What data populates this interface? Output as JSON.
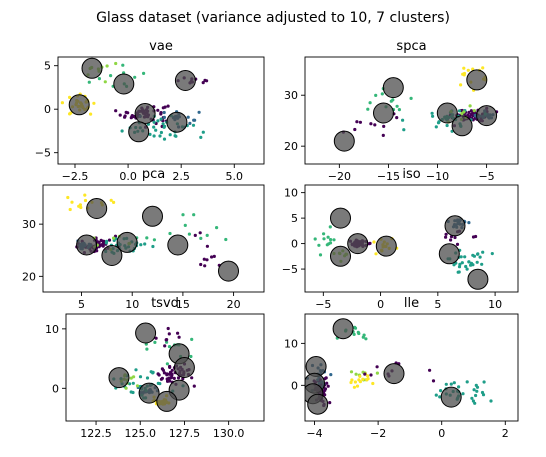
{
  "figure": {
    "suptitle": "Glass dataset (variance adjusted to 10, 7 clusters)"
  },
  "colors": {
    "class_palette": [
      "#440154",
      "#31688e",
      "#1f9e89",
      "#35b779",
      "#8fd744",
      "#d4e21a",
      "#fde725"
    ],
    "centroid_fill": "#4d4d4d",
    "centroid_edge": "#000000"
  },
  "chart_data": [
    {
      "type": "scatter",
      "title": "vae",
      "xlim": [
        -3.3,
        6.4
      ],
      "ylim": [
        -6.3,
        6.0
      ],
      "xticks": [
        -2.5,
        0.0,
        2.5,
        5.0
      ],
      "xtick_labels": [
        "−2.5",
        "0.0",
        "2.5",
        "5.0"
      ],
      "yticks": [
        -5,
        0,
        5
      ],
      "ytick_labels": [
        "−5",
        "0",
        "5"
      ],
      "centroids": [
        [
          -1.7,
          4.7
        ],
        [
          -0.2,
          2.9
        ],
        [
          2.7,
          3.3
        ],
        [
          -2.3,
          0.5
        ],
        [
          0.8,
          -0.5
        ],
        [
          2.3,
          -1.5
        ],
        [
          0.5,
          -2.6
        ]
      ],
      "clusters": [
        {
          "class": 0,
          "center": [
            0.8,
            -0.5
          ],
          "spread": [
            1.0,
            1.0
          ],
          "n": 55
        },
        {
          "class": 1,
          "center": [
            2.3,
            -1.0
          ],
          "spread": [
            0.9,
            0.9
          ],
          "n": 20
        },
        {
          "class": 2,
          "center": [
            1.4,
            -2.0
          ],
          "spread": [
            1.5,
            1.4
          ],
          "n": 35
        },
        {
          "class": 3,
          "center": [
            -0.6,
            3.5
          ],
          "spread": [
            1.4,
            1.3
          ],
          "n": 10
        },
        {
          "class": 4,
          "center": [
            -1.3,
            4.5
          ],
          "spread": [
            0.9,
            0.8
          ],
          "n": 9
        },
        {
          "class": 6,
          "center": [
            -2.3,
            0.5
          ],
          "spread": [
            0.7,
            1.0
          ],
          "n": 28
        },
        {
          "class": 0,
          "center": [
            3.0,
            3.3
          ],
          "spread": [
            0.7,
            0.4
          ],
          "n": 10
        }
      ]
    },
    {
      "type": "scatter",
      "title": "spca",
      "xlim": [
        -23.5,
        -1.8
      ],
      "ylim": [
        16.5,
        37.5
      ],
      "xticks": [
        -20,
        -15,
        -10,
        -5
      ],
      "xtick_labels": [
        "−20",
        "−15",
        "−10",
        "−5"
      ],
      "yticks": [
        20,
        30
      ],
      "ytick_labels": [
        "20",
        "30"
      ],
      "centroids": [
        [
          -19.5,
          21.0
        ],
        [
          -15.5,
          26.5
        ],
        [
          -14.5,
          31.5
        ],
        [
          -9.0,
          26.5
        ],
        [
          -7.5,
          24.0
        ],
        [
          -6.0,
          33.0
        ],
        [
          -5.0,
          26.0
        ]
      ],
      "clusters": [
        {
          "class": 0,
          "center": [
            -6.5,
            26.0
          ],
          "spread": [
            1.8,
            1.2
          ],
          "n": 55
        },
        {
          "class": 1,
          "center": [
            -5.2,
            26.0
          ],
          "spread": [
            0.8,
            0.8
          ],
          "n": 20
        },
        {
          "class": 2,
          "center": [
            -9.0,
            25.5
          ],
          "spread": [
            2.5,
            1.8
          ],
          "n": 30
        },
        {
          "class": 3,
          "center": [
            -15.0,
            28.5
          ],
          "spread": [
            3.5,
            3.5
          ],
          "n": 12
        },
        {
          "class": 4,
          "center": [
            -8.0,
            26.5
          ],
          "spread": [
            2.0,
            2.0
          ],
          "n": 8
        },
        {
          "class": 6,
          "center": [
            -6.0,
            33.5
          ],
          "spread": [
            2.0,
            2.2
          ],
          "n": 14
        },
        {
          "class": 0,
          "center": [
            -17.0,
            24.0
          ],
          "spread": [
            3.0,
            3.0
          ],
          "n": 10
        }
      ]
    },
    {
      "type": "scatter",
      "title": "pca",
      "xlim": [
        1.2,
        23.0
      ],
      "ylim": [
        17.0,
        37.5
      ],
      "xticks": [
        5,
        10,
        15,
        20
      ],
      "xtick_labels": [
        "5",
        "10",
        "15",
        "20"
      ],
      "yticks": [
        20,
        30
      ],
      "ytick_labels": [
        "20",
        "30"
      ],
      "centroids": [
        [
          6.5,
          33.0
        ],
        [
          12.0,
          31.5
        ],
        [
          5.5,
          26.0
        ],
        [
          9.5,
          26.5
        ],
        [
          14.5,
          26.0
        ],
        [
          8.0,
          24.0
        ],
        [
          19.5,
          21.0
        ]
      ],
      "clusters": [
        {
          "class": 0,
          "center": [
            6.5,
            26.0
          ],
          "spread": [
            1.8,
            1.2
          ],
          "n": 55
        },
        {
          "class": 1,
          "center": [
            5.2,
            26.0
          ],
          "spread": [
            0.8,
            0.8
          ],
          "n": 20
        },
        {
          "class": 2,
          "center": [
            9.0,
            25.5
          ],
          "spread": [
            2.5,
            1.8
          ],
          "n": 30
        },
        {
          "class": 3,
          "center": [
            15.0,
            28.5
          ],
          "spread": [
            3.5,
            3.5
          ],
          "n": 12
        },
        {
          "class": 4,
          "center": [
            8.0,
            26.5
          ],
          "spread": [
            2.0,
            2.0
          ],
          "n": 8
        },
        {
          "class": 6,
          "center": [
            6.0,
            33.5
          ],
          "spread": [
            2.0,
            2.2
          ],
          "n": 14
        },
        {
          "class": 0,
          "center": [
            17.0,
            24.0
          ],
          "spread": [
            3.0,
            3.0
          ],
          "n": 10
        }
      ]
    },
    {
      "type": "scatter",
      "title": "iso",
      "xlim": [
        -6.6,
        12.0
      ],
      "ylim": [
        -9.5,
        11.5
      ],
      "xticks": [
        -5,
        0,
        5,
        10
      ],
      "xtick_labels": [
        "−5",
        "0",
        "5",
        "10"
      ],
      "yticks": [
        -5,
        0,
        5,
        10
      ],
      "ytick_labels": [
        "−5",
        "0",
        "5",
        "10"
      ],
      "centroids": [
        [
          -3.5,
          5.0
        ],
        [
          -2.0,
          0.0
        ],
        [
          0.5,
          -0.5
        ],
        [
          6.5,
          3.5
        ],
        [
          6.0,
          -2.0
        ],
        [
          -3.5,
          -2.5
        ],
        [
          8.5,
          -7.0
        ]
      ],
      "clusters": [
        {
          "class": 0,
          "center": [
            -2.0,
            0.0
          ],
          "spread": [
            0.7,
            0.6
          ],
          "n": 55
        },
        {
          "class": 1,
          "center": [
            6.8,
            3.8
          ],
          "spread": [
            0.7,
            1.0
          ],
          "n": 20
        },
        {
          "class": 2,
          "center": [
            7.5,
            -3.0
          ],
          "spread": [
            1.6,
            2.5
          ],
          "n": 30
        },
        {
          "class": 3,
          "center": [
            -4.5,
            0.5
          ],
          "spread": [
            1.2,
            3.0
          ],
          "n": 12
        },
        {
          "class": 4,
          "center": [
            -3.5,
            -2.0
          ],
          "spread": [
            0.6,
            0.8
          ],
          "n": 8
        },
        {
          "class": 6,
          "center": [
            0.5,
            -0.5
          ],
          "spread": [
            1.0,
            1.2
          ],
          "n": 14
        },
        {
          "class": 0,
          "center": [
            7.0,
            1.5
          ],
          "spread": [
            1.2,
            2.5
          ],
          "n": 10
        }
      ]
    },
    {
      "type": "scatter",
      "title": "tsvd",
      "xlim": [
        120.8,
        132.0
      ],
      "ylim": [
        -5.5,
        12.5
      ],
      "xticks": [
        122.5,
        125.0,
        127.5,
        130.0
      ],
      "xtick_labels": [
        "122.5",
        "125.0",
        "127.5",
        "130.0"
      ],
      "yticks": [
        0,
        10
      ],
      "ytick_labels": [
        "0",
        "10"
      ],
      "centroids": [
        [
          125.3,
          9.3
        ],
        [
          127.2,
          5.8
        ],
        [
          127.5,
          3.5
        ],
        [
          123.8,
          1.8
        ],
        [
          125.5,
          -0.8
        ],
        [
          127.2,
          -0.3
        ],
        [
          126.5,
          -2.2
        ]
      ],
      "clusters": [
        {
          "class": 0,
          "center": [
            127.0,
            2.5
          ],
          "spread": [
            0.8,
            1.8
          ],
          "n": 50
        },
        {
          "class": 1,
          "center": [
            125.3,
            -0.5
          ],
          "spread": [
            0.5,
            0.7
          ],
          "n": 20
        },
        {
          "class": 2,
          "center": [
            125.0,
            1.0
          ],
          "spread": [
            1.5,
            2.5
          ],
          "n": 30
        },
        {
          "class": 3,
          "center": [
            126.0,
            7.0
          ],
          "spread": [
            1.8,
            2.5
          ],
          "n": 12
        },
        {
          "class": 4,
          "center": [
            124.5,
            1.5
          ],
          "spread": [
            1.2,
            1.5
          ],
          "n": 10
        },
        {
          "class": 6,
          "center": [
            126.3,
            -2.3
          ],
          "spread": [
            0.7,
            0.6
          ],
          "n": 24
        },
        {
          "class": 0,
          "center": [
            126.5,
            8.5
          ],
          "spread": [
            1.0,
            2.0
          ],
          "n": 8
        }
      ]
    },
    {
      "type": "scatter",
      "title": "lle",
      "xlim": [
        -4.3,
        2.4
      ],
      "ylim": [
        -8.5,
        17.0
      ],
      "xticks": [
        -4,
        -2,
        0,
        2
      ],
      "xtick_labels": [
        "−4",
        "−2",
        "0",
        "2"
      ],
      "yticks": [
        0,
        10
      ],
      "ytick_labels": [
        "0",
        "10"
      ],
      "centroids": [
        [
          -3.1,
          13.5
        ],
        [
          -3.95,
          4.5
        ],
        [
          -4.0,
          0.5
        ],
        [
          -4.05,
          -2.0
        ],
        [
          -3.9,
          -4.5
        ],
        [
          -1.5,
          2.8
        ],
        [
          0.3,
          -2.8
        ]
      ],
      "clusters": [
        {
          "class": 0,
          "center": [
            -3.8,
            -1.0
          ],
          "spread": [
            0.2,
            3.0
          ],
          "n": 55
        },
        {
          "class": 1,
          "center": [
            -3.9,
            2.0
          ],
          "spread": [
            0.3,
            4.0
          ],
          "n": 20
        },
        {
          "class": 2,
          "center": [
            0.5,
            -1.5
          ],
          "spread": [
            1.0,
            2.5
          ],
          "n": 30
        },
        {
          "class": 3,
          "center": [
            -2.8,
            12.5
          ],
          "spread": [
            0.4,
            2.2
          ],
          "n": 12
        },
        {
          "class": 4,
          "center": [
            -2.4,
            2.5
          ],
          "spread": [
            0.5,
            1.2
          ],
          "n": 8
        },
        {
          "class": 6,
          "center": [
            -2.6,
            0.5
          ],
          "spread": [
            0.5,
            2.0
          ],
          "n": 14
        },
        {
          "class": 0,
          "center": [
            -1.5,
            3.5
          ],
          "spread": [
            1.0,
            2.0
          ],
          "n": 10
        }
      ]
    }
  ]
}
